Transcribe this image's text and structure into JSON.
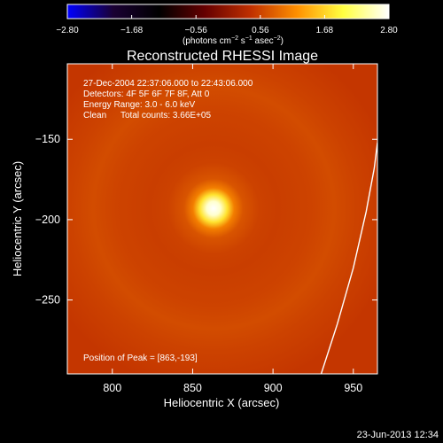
{
  "chart_data": {
    "type": "heatmap",
    "title": "Reconstructed RHESSI Image",
    "xlabel": "Heliocentric X (arcsec)",
    "ylabel": "Heliocentric Y (arcsec)",
    "xlim": [
      772,
      965
    ],
    "ylim": [
      -296,
      -103
    ],
    "xticks": [
      800,
      850,
      900,
      950
    ],
    "xtick_labels": [
      "800",
      "850",
      "900",
      "950"
    ],
    "yticks": [
      -150,
      -200,
      -250
    ],
    "ytick_labels": [
      "−150",
      "−200",
      "−250"
    ],
    "colorbar": {
      "range": [
        -2.8,
        2.8
      ],
      "ticks": [
        -2.8,
        -1.68,
        -0.56,
        0.56,
        1.68,
        2.8
      ],
      "tick_labels": [
        "−2.80",
        "−1.68",
        "−0.56",
        "0.56",
        "1.68",
        "2.80"
      ],
      "units_label": "(photons cm",
      "units_sup1": "−2",
      "units_mid1": " s",
      "units_sup2": "−1",
      "units_mid2": " asec",
      "units_sup3": "−2",
      "units_end": ")",
      "colormap_stops": [
        "#0000ff",
        "#1a0033",
        "#000000",
        "#660000",
        "#c03000",
        "#ff9000",
        "#ffff40",
        "#ffffff"
      ]
    },
    "grid": false,
    "peak": {
      "x": 863,
      "y": -193,
      "value": 2.8
    },
    "ring": {
      "center_x": 863,
      "center_y": -193,
      "radius": 75,
      "value": 0.63
    },
    "background_value": 0.45,
    "limb_arc": [
      [
        930,
        -296
      ],
      [
        940,
        -265
      ],
      [
        950,
        -230
      ],
      [
        958,
        -195
      ],
      [
        963,
        -168
      ],
      [
        965,
        -152
      ]
    ],
    "annotations": {
      "time_range": "27-Dec-2004 22:37:06.000 to 22:43:06.000",
      "detectors": "Detectors: 4F 5F 6F 7F 8F, Att 0",
      "energy": "Energy Range: 3.0 - 6.0 keV",
      "method": "Clean",
      "counts": "Total counts: 3.66E+05",
      "peak_position": "Position of Peak = [863,-193]"
    },
    "timestamp": "23-Jun-2013 12:34"
  }
}
